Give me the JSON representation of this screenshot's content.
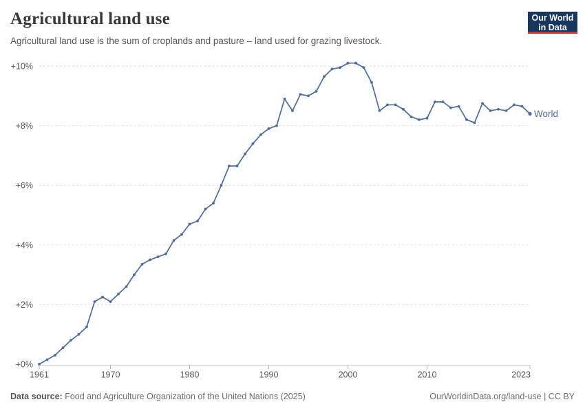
{
  "header": {
    "title": "Agricultural land use",
    "subtitle": "Agricultural land use is the sum of croplands and pasture – land used for grazing livestock.",
    "logo": {
      "line1": "Our World",
      "line2": "in Data"
    }
  },
  "footer": {
    "source_label": "Data source:",
    "source_value": "Food and Agriculture Organization of the United Nations (2025)",
    "attribution": "OurWorldinData.org/land-use | CC BY"
  },
  "colors": {
    "line": "#4c6a9c",
    "entity_label": "#4c6a9c",
    "logo_bg": "#18375f",
    "logo_accent": "#c53a33",
    "gridline": "#dadada",
    "axis_line": "#c8c8c8",
    "tick_mark": "#b3b3b3",
    "tick_label": "#585858"
  },
  "chart_data": {
    "type": "line",
    "title": "Agricultural land use",
    "subtitle": "Agricultural land use is the sum of croplands and pasture – land used for grazing livestock.",
    "xlabel": "",
    "ylabel": "",
    "xlim": [
      1961,
      2023
    ],
    "ylim": [
      0,
      10.5
    ],
    "grid": "horizontal-dashed",
    "legend_position": "end-of-line-label",
    "x_ticks": [
      1961,
      1970,
      1980,
      1990,
      2000,
      2010,
      2023
    ],
    "y_ticks": [
      {
        "value": 0,
        "label": "+0%"
      },
      {
        "value": 2,
        "label": "+2%"
      },
      {
        "value": 4,
        "label": "+4%"
      },
      {
        "value": 6,
        "label": "+6%"
      },
      {
        "value": 8,
        "label": "+8%"
      },
      {
        "value": 10,
        "label": "+10%"
      }
    ],
    "x": [
      1961,
      1962,
      1963,
      1964,
      1965,
      1966,
      1967,
      1968,
      1969,
      1970,
      1971,
      1972,
      1973,
      1974,
      1975,
      1976,
      1977,
      1978,
      1979,
      1980,
      1981,
      1982,
      1983,
      1984,
      1985,
      1986,
      1987,
      1988,
      1989,
      1990,
      1991,
      1992,
      1993,
      1994,
      1995,
      1996,
      1997,
      1998,
      1999,
      2000,
      2001,
      2002,
      2003,
      2004,
      2005,
      2006,
      2007,
      2008,
      2009,
      2010,
      2011,
      2012,
      2013,
      2014,
      2015,
      2016,
      2017,
      2018,
      2019,
      2020,
      2021,
      2022,
      2023
    ],
    "series": [
      {
        "name": "World",
        "color": "#4c6a9c",
        "unit": "% change since 1961",
        "values": [
          0,
          0.15,
          0.3,
          0.55,
          0.8,
          1.0,
          1.25,
          2.1,
          2.25,
          2.1,
          2.35,
          2.6,
          3.0,
          3.35,
          3.5,
          3.6,
          3.7,
          4.15,
          4.35,
          4.7,
          4.8,
          5.2,
          5.4,
          6.0,
          6.65,
          6.65,
          7.05,
          7.4,
          7.7,
          7.9,
          8.0,
          8.9,
          8.5,
          9.05,
          9.0,
          9.15,
          9.65,
          9.9,
          9.95,
          10.1,
          10.1,
          9.95,
          9.45,
          8.5,
          8.7,
          8.7,
          8.55,
          8.3,
          8.2,
          8.25,
          8.8,
          8.8,
          8.6,
          8.65,
          8.2,
          8.1,
          8.75,
          8.5,
          8.55,
          8.5,
          8.7,
          8.65,
          8.4
        ]
      }
    ]
  }
}
